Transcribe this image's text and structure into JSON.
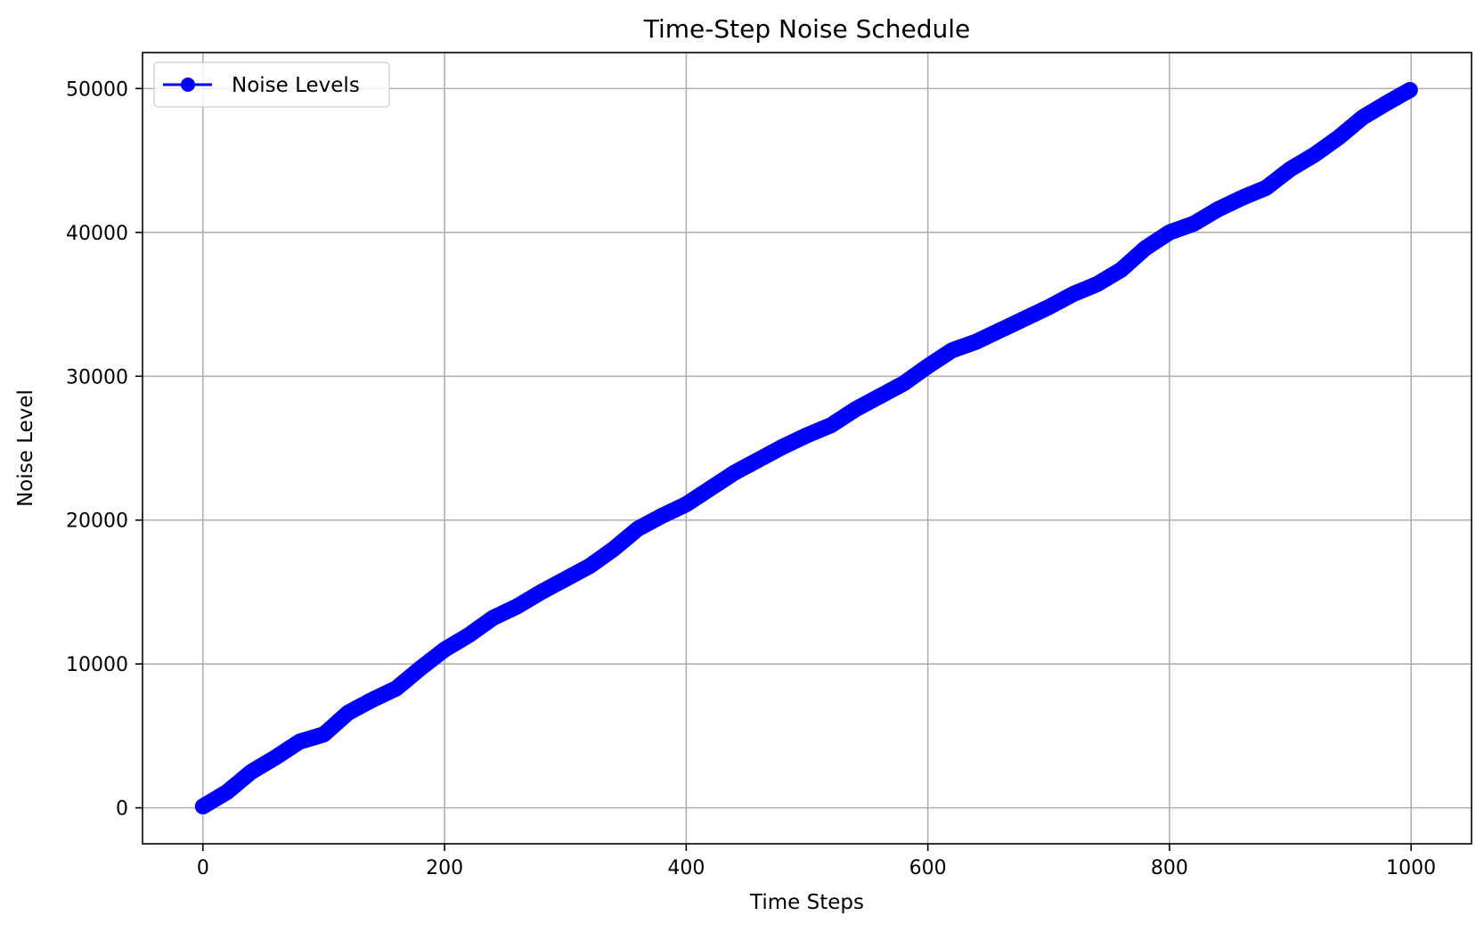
{
  "chart_data": {
    "type": "line",
    "title": "Time-Step Noise Schedule",
    "xlabel": "Time Steps",
    "ylabel": "Noise Level",
    "xlim": [
      -50,
      1050
    ],
    "ylim": [
      -2500,
      52500
    ],
    "xticks": [
      0,
      200,
      400,
      600,
      800,
      1000
    ],
    "yticks": [
      0,
      10000,
      20000,
      30000,
      40000,
      50000
    ],
    "grid": true,
    "legend_position": "top-left",
    "series": [
      {
        "name": "Noise Levels",
        "color": "#0000ff",
        "marker": "circle",
        "keypoints": [
          [
            0,
            100
          ],
          [
            20,
            1100
          ],
          [
            40,
            2500
          ],
          [
            60,
            3500
          ],
          [
            80,
            4600
          ],
          [
            100,
            5100
          ],
          [
            120,
            6600
          ],
          [
            140,
            7500
          ],
          [
            160,
            8300
          ],
          [
            180,
            9700
          ],
          [
            200,
            11000
          ],
          [
            220,
            12000
          ],
          [
            240,
            13200
          ],
          [
            260,
            14000
          ],
          [
            280,
            15000
          ],
          [
            300,
            15900
          ],
          [
            320,
            16800
          ],
          [
            340,
            18000
          ],
          [
            360,
            19400
          ],
          [
            380,
            20300
          ],
          [
            400,
            21100
          ],
          [
            420,
            22200
          ],
          [
            440,
            23300
          ],
          [
            460,
            24200
          ],
          [
            480,
            25100
          ],
          [
            500,
            25900
          ],
          [
            520,
            26600
          ],
          [
            540,
            27700
          ],
          [
            560,
            28600
          ],
          [
            580,
            29500
          ],
          [
            600,
            30700
          ],
          [
            620,
            31800
          ],
          [
            640,
            32400
          ],
          [
            660,
            33200
          ],
          [
            680,
            34000
          ],
          [
            700,
            34800
          ],
          [
            720,
            35700
          ],
          [
            740,
            36400
          ],
          [
            760,
            37400
          ],
          [
            780,
            38900
          ],
          [
            800,
            40000
          ],
          [
            820,
            40600
          ],
          [
            840,
            41600
          ],
          [
            860,
            42400
          ],
          [
            880,
            43100
          ],
          [
            900,
            44400
          ],
          [
            920,
            45400
          ],
          [
            940,
            46600
          ],
          [
            960,
            48000
          ],
          [
            980,
            49000
          ],
          [
            999,
            49900
          ]
        ]
      }
    ]
  }
}
